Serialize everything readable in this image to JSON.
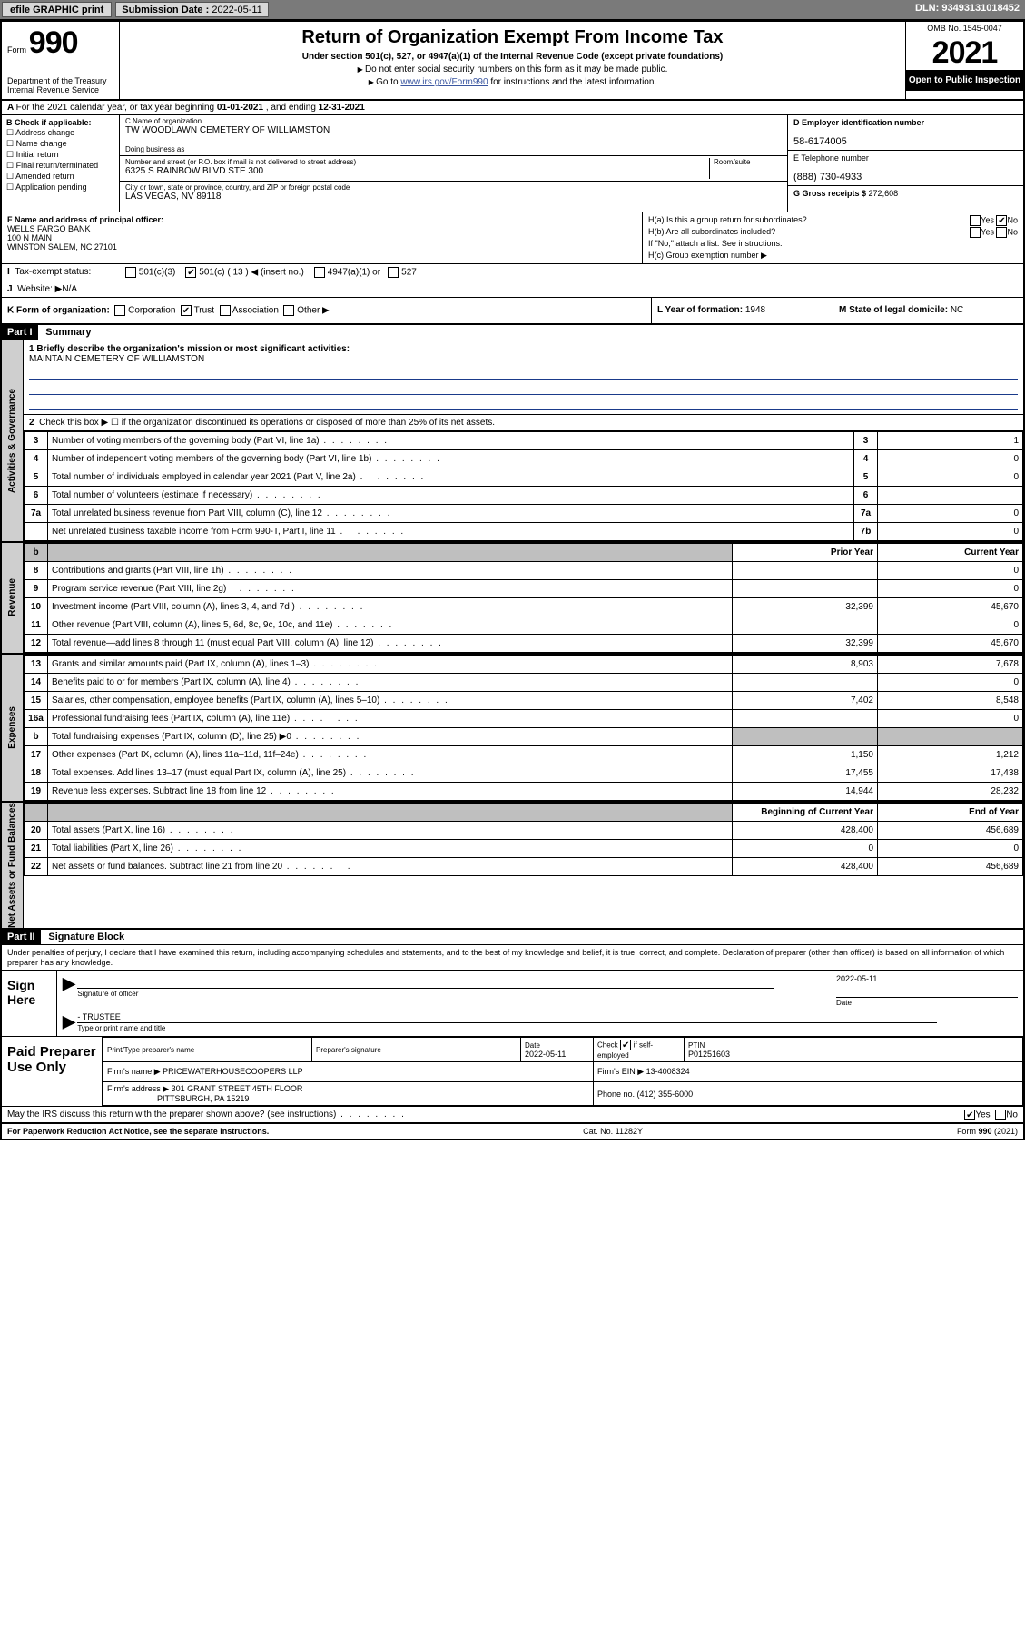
{
  "topbar": {
    "efile": "efile GRAPHIC print",
    "subdate_label": "Submission Date : ",
    "subdate": "2022-05-11",
    "dln_label": "DLN: ",
    "dln": "93493131018452"
  },
  "header": {
    "form_word": "Form",
    "form_num": "990",
    "dept": "Department of the Treasury\nInternal Revenue Service",
    "title": "Return of Organization Exempt From Income Tax",
    "sub1": "Under section 501(c), 527, or 4947(a)(1) of the Internal Revenue Code (except private foundations)",
    "sub2": "Do not enter social security numbers on this form as it may be made public.",
    "sub3_a": "Go to ",
    "sub3_link": "www.irs.gov/Form990",
    "sub3_b": " for instructions and the latest information.",
    "omb": "OMB No. 1545-0047",
    "year": "2021",
    "open": "Open to Public Inspection"
  },
  "rowA": {
    "text_a": "For the 2021 calendar year, or tax year beginning ",
    "begin": "01-01-2021",
    "text_b": " , and ending ",
    "end": "12-31-2021"
  },
  "boxB": {
    "hd": "B Check if applicable:",
    "opts": [
      "Address change",
      "Name change",
      "Initial return",
      "Final return/terminated",
      "Amended return",
      "Application pending"
    ]
  },
  "boxC": {
    "name_lab": "C Name of organization",
    "name": "TW WOODLAWN CEMETERY OF WILLIAMSTON",
    "dba_lab": "Doing business as",
    "addr_lab": "Number and street (or P.O. box if mail is not delivered to street address)",
    "room_lab": "Room/suite",
    "addr": "6325 S RAINBOW BLVD STE 300",
    "city_lab": "City or town, state or province, country, and ZIP or foreign postal code",
    "city": "LAS VEGAS, NV  89118"
  },
  "boxD": {
    "lab": "D Employer identification number",
    "val": "58-6174005"
  },
  "boxE": {
    "lab": "E Telephone number",
    "val": "(888) 730-4933"
  },
  "boxG": {
    "lab": "G Gross receipts $ ",
    "val": "272,608"
  },
  "boxF": {
    "lab": "F Name and address of principal officer:",
    "line1": "WELLS FARGO BANK",
    "line2": "100 N MAIN",
    "line3": "WINSTON SALEM, NC  27101"
  },
  "boxH": {
    "a": "H(a)  Is this a group return for subordinates?",
    "b": "H(b)  Are all subordinates included?",
    "b2": "If \"No,\" attach a list. See instructions.",
    "c": "H(c)  Group exemption number ▶",
    "yes": "Yes",
    "no": "No"
  },
  "rowI": {
    "lab": "Tax-exempt status:",
    "o1": "501(c)(3)",
    "o2": "501(c) ( 13 ) ◀ (insert no.)",
    "o3": "4947(a)(1) or",
    "o4": "527"
  },
  "rowJ": {
    "lab": "Website: ▶ ",
    "val": "N/A"
  },
  "rowK": {
    "lab": "K Form of organization:",
    "opts": [
      "Corporation",
      "Trust",
      "Association",
      "Other ▶"
    ],
    "trust_checked": true,
    "L_lab": "L Year of formation: ",
    "L_val": "1948",
    "M_lab": "M State of legal domicile: ",
    "M_val": "NC"
  },
  "part1": {
    "tag": "Part I",
    "title": "Summary"
  },
  "sidetabs": {
    "a": "Activities & Governance",
    "b": "Revenue",
    "c": "Expenses",
    "d": "Net Assets or Fund Balances"
  },
  "mission": {
    "q": "1  Briefly describe the organization's mission or most significant activities:",
    "val": "MAINTAIN CEMETERY OF WILLIAMSTON"
  },
  "gov": {
    "l2": "Check this box ▶ ☐  if the organization discontinued its operations or disposed of more than 25% of its net assets.",
    "rows": [
      {
        "n": "3",
        "d": "Number of voting members of the governing body (Part VI, line 1a)",
        "box": "3",
        "v": "1"
      },
      {
        "n": "4",
        "d": "Number of independent voting members of the governing body (Part VI, line 1b)",
        "box": "4",
        "v": "0"
      },
      {
        "n": "5",
        "d": "Total number of individuals employed in calendar year 2021 (Part V, line 2a)",
        "box": "5",
        "v": "0"
      },
      {
        "n": "6",
        "d": "Total number of volunteers (estimate if necessary)",
        "box": "6",
        "v": ""
      },
      {
        "n": "7a",
        "d": "Total unrelated business revenue from Part VIII, column (C), line 12",
        "box": "7a",
        "v": "0"
      },
      {
        "n": "",
        "d": "Net unrelated business taxable income from Form 990-T, Part I, line 11",
        "box": "7b",
        "v": "0"
      }
    ]
  },
  "cols": {
    "prior": "Prior Year",
    "current": "Current Year",
    "boc": "Beginning of Current Year",
    "eoy": "End of Year"
  },
  "rev": [
    {
      "n": "8",
      "d": "Contributions and grants (Part VIII, line 1h)",
      "p": "",
      "c": "0"
    },
    {
      "n": "9",
      "d": "Program service revenue (Part VIII, line 2g)",
      "p": "",
      "c": "0"
    },
    {
      "n": "10",
      "d": "Investment income (Part VIII, column (A), lines 3, 4, and 7d )",
      "p": "32,399",
      "c": "45,670"
    },
    {
      "n": "11",
      "d": "Other revenue (Part VIII, column (A), lines 5, 6d, 8c, 9c, 10c, and 11e)",
      "p": "",
      "c": "0"
    },
    {
      "n": "12",
      "d": "Total revenue—add lines 8 through 11 (must equal Part VIII, column (A), line 12)",
      "p": "32,399",
      "c": "45,670"
    }
  ],
  "exp": [
    {
      "n": "13",
      "d": "Grants and similar amounts paid (Part IX, column (A), lines 1–3)",
      "p": "8,903",
      "c": "7,678"
    },
    {
      "n": "14",
      "d": "Benefits paid to or for members (Part IX, column (A), line 4)",
      "p": "",
      "c": "0"
    },
    {
      "n": "15",
      "d": "Salaries, other compensation, employee benefits (Part IX, column (A), lines 5–10)",
      "p": "7,402",
      "c": "8,548"
    },
    {
      "n": "16a",
      "d": "Professional fundraising fees (Part IX, column (A), line 11e)",
      "p": "",
      "c": "0"
    },
    {
      "n": "b",
      "d": "Total fundraising expenses (Part IX, column (D), line 25) ▶0",
      "p": "GREY",
      "c": "GREY"
    },
    {
      "n": "17",
      "d": "Other expenses (Part IX, column (A), lines 11a–11d, 11f–24e)",
      "p": "1,150",
      "c": "1,212"
    },
    {
      "n": "18",
      "d": "Total expenses. Add lines 13–17 (must equal Part IX, column (A), line 25)",
      "p": "17,455",
      "c": "17,438"
    },
    {
      "n": "19",
      "d": "Revenue less expenses. Subtract line 18 from line 12",
      "p": "14,944",
      "c": "28,232"
    }
  ],
  "net": [
    {
      "n": "20",
      "d": "Total assets (Part X, line 16)",
      "p": "428,400",
      "c": "456,689"
    },
    {
      "n": "21",
      "d": "Total liabilities (Part X, line 26)",
      "p": "0",
      "c": "0"
    },
    {
      "n": "22",
      "d": "Net assets or fund balances. Subtract line 21 from line 20",
      "p": "428,400",
      "c": "456,689"
    }
  ],
  "part2": {
    "tag": "Part II",
    "title": "Signature Block"
  },
  "sig": {
    "decl": "Under penalties of perjury, I declare that I have examined this return, including accompanying schedules and statements, and to the best of my knowledge and belief, it is true, correct, and complete. Declaration of preparer (other than officer) is based on all information of which preparer has any knowledge.",
    "sign_here": "Sign Here",
    "sig_of_officer": "Signature of officer",
    "date": "Date",
    "date_val": "2022-05-11",
    "trustee": "- TRUSTEE",
    "type_name": "Type or print name and title"
  },
  "prep": {
    "label": "Paid Preparer Use Only",
    "h1": "Print/Type preparer's name",
    "h2": "Preparer's signature",
    "h3": "Date",
    "h3v": "2022-05-11",
    "h4a": "Check",
    "h4b": "if self-employed",
    "h5": "PTIN",
    "h5v": "P01251603",
    "firm_lab": "Firm's name   ▶ ",
    "firm": "PRICEWATERHOUSECOOPERS LLP",
    "ein_lab": "Firm's EIN ▶ ",
    "ein": "13-4008324",
    "addr_lab": "Firm's address ▶ ",
    "addr1": "301 GRANT STREET 45TH FLOOR",
    "addr2": "PITTSBURGH, PA  15219",
    "phone_lab": "Phone no. ",
    "phone": "(412) 355-6000"
  },
  "may": {
    "q": "May the IRS discuss this return with the preparer shown above? (see instructions)",
    "yes": "Yes",
    "no": "No"
  },
  "foot": {
    "l": "For Paperwork Reduction Act Notice, see the separate instructions.",
    "c": "Cat. No. 11282Y",
    "r": "Form 990 (2021)"
  }
}
